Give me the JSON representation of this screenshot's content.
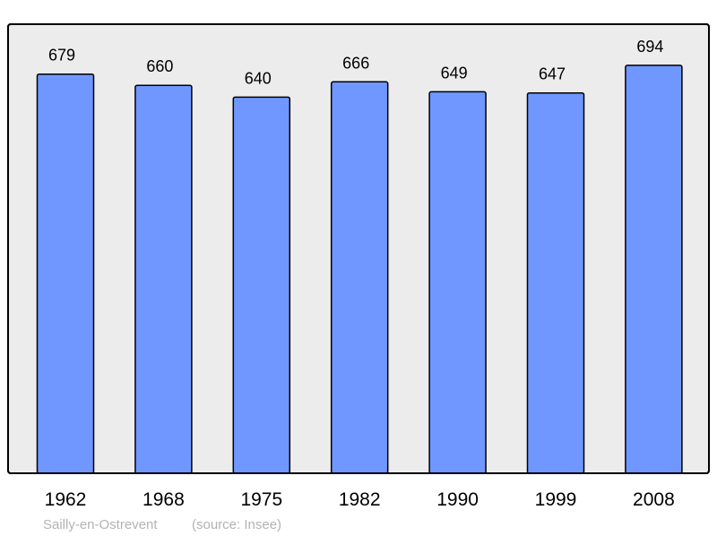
{
  "chart_data": {
    "type": "bar",
    "categories": [
      "1962",
      "1968",
      "1975",
      "1982",
      "1990",
      "1999",
      "2008"
    ],
    "values": [
      679,
      660,
      640,
      666,
      649,
      647,
      694
    ],
    "data_labels": [
      "679",
      "660",
      "640",
      "666",
      "649",
      "647",
      "694"
    ],
    "ylim": [
      0,
      764
    ],
    "grid": false,
    "colors": {
      "bar": "#7097ff",
      "plot_background": "#ececec",
      "border": "#000000"
    },
    "caption": "Sailly-en-Ostrevent",
    "source": "(source: Insee)"
  }
}
